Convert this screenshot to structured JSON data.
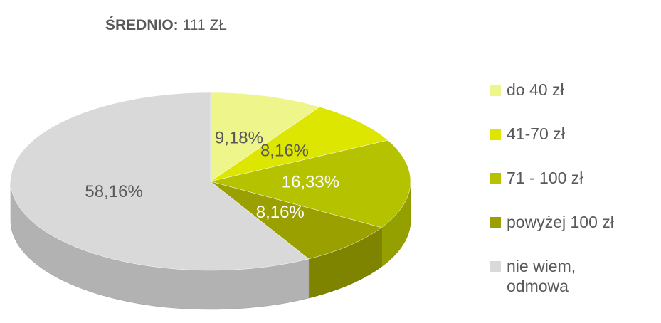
{
  "chart_data": {
    "type": "pie3d",
    "title": "ŚREDNIO:",
    "subtitle": "111 ZŁ",
    "categories": [
      "do 40 zł",
      "41-70 zł",
      "71 - 100 zł",
      "powyżej 100 zł",
      "nie wiem, odmowa"
    ],
    "values": [
      9.18,
      8.16,
      16.33,
      8.16,
      58.16
    ],
    "value_labels": [
      "9,18%",
      "8,16%",
      "16,33%",
      "8,16%",
      "58,16%"
    ],
    "colors": [
      "#eef58a",
      "#dde600",
      "#b5c200",
      "#9aa000",
      "#d9d9d9"
    ],
    "legend": "right"
  }
}
